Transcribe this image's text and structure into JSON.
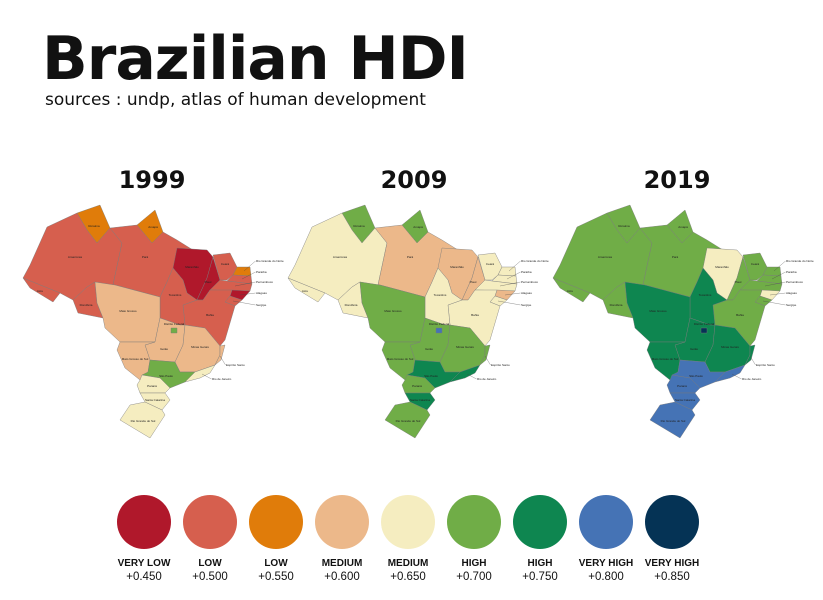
{
  "header": {
    "title": "Brazilian HDI",
    "subtitle": "sources : undp, atlas of human development"
  },
  "legend": [
    {
      "label": "VERY LOW",
      "value": "+0.450",
      "v": 0.45,
      "color": "#B0182B"
    },
    {
      "label": "LOW",
      "value": "+0.500",
      "v": 0.5,
      "color": "#D65F4E"
    },
    {
      "label": "LOW",
      "value": "+0.550",
      "v": 0.55,
      "color": "#E07C0A"
    },
    {
      "label": "MEDIUM",
      "value": "+0.600",
      "v": 0.6,
      "color": "#ECB88A"
    },
    {
      "label": "MEDIUM",
      "value": "+0.650",
      "v": 0.65,
      "color": "#F5EDC0"
    },
    {
      "label": "HIGH",
      "value": "+0.700",
      "v": 0.7,
      "color": "#70AD47"
    },
    {
      "label": "HIGH",
      "value": "+0.750",
      "v": 0.75,
      "color": "#0E8650"
    },
    {
      "label": "VERY HIGH",
      "value": "+0.800",
      "v": 0.8,
      "color": "#4573B5"
    },
    {
      "label": "VERY HIGH",
      "value": "+0.850",
      "v": 0.85,
      "color": "#053355"
    }
  ],
  "states": {
    "RR": "Roraima",
    "AP": "Amapá",
    "AM": "Amazonas",
    "AC": "Acre",
    "RO": "Rondônia",
    "PA": "Pará",
    "MA": "Maranhão",
    "PI": "Piauí",
    "CE": "Ceará",
    "RN": "Rio Grande do Norte",
    "PB": "Paraíba",
    "PE": "Pernambuco",
    "AL": "Alagoas",
    "SE": "Sergipe",
    "BA": "Bahia",
    "TO": "Tocantins",
    "MT": "Mato Grosso",
    "GO": "Goiás",
    "DF": "Distrito Federal",
    "MG": "Minas Gerais",
    "ES": "Espírito Santo",
    "MS": "Mato Grosso do Sul",
    "SP": "São Paulo",
    "RJ": "Rio de Janeiro",
    "PR": "Paraná",
    "SC": "Santa Catarina",
    "RS": "Rio Grande do Sul"
  },
  "maps": [
    {
      "year": "1999",
      "hdi": {
        "RR": 0.55,
        "AP": 0.55,
        "AM": 0.5,
        "AC": 0.5,
        "RO": 0.5,
        "PA": 0.5,
        "MA": 0.45,
        "PI": 0.45,
        "CE": 0.5,
        "RN": 0.55,
        "PB": 0.5,
        "PE": 0.5,
        "AL": 0.45,
        "SE": 0.5,
        "BA": 0.5,
        "TO": 0.5,
        "MT": 0.6,
        "GO": 0.6,
        "DF": 0.7,
        "MG": 0.6,
        "ES": 0.6,
        "MS": 0.6,
        "SP": 0.7,
        "RJ": 0.65,
        "PR": 0.65,
        "SC": 0.65,
        "RS": 0.65
      }
    },
    {
      "year": "2009",
      "hdi": {
        "RR": 0.7,
        "AP": 0.7,
        "AM": 0.65,
        "AC": 0.65,
        "RO": 0.65,
        "PA": 0.6,
        "MA": 0.6,
        "PI": 0.6,
        "CE": 0.65,
        "RN": 0.65,
        "PB": 0.65,
        "PE": 0.65,
        "AL": 0.6,
        "SE": 0.65,
        "BA": 0.65,
        "TO": 0.65,
        "MT": 0.7,
        "GO": 0.7,
        "DF": 0.8,
        "MG": 0.7,
        "ES": 0.7,
        "MS": 0.7,
        "SP": 0.75,
        "RJ": 0.75,
        "PR": 0.7,
        "SC": 0.75,
        "RS": 0.7
      }
    },
    {
      "year": "2019",
      "hdi": {
        "RR": 0.7,
        "AP": 0.7,
        "AM": 0.7,
        "AC": 0.7,
        "RO": 0.7,
        "PA": 0.7,
        "MA": 0.65,
        "PI": 0.7,
        "CE": 0.7,
        "RN": 0.7,
        "PB": 0.7,
        "PE": 0.7,
        "AL": 0.65,
        "SE": 0.7,
        "BA": 0.7,
        "TO": 0.75,
        "MT": 0.75,
        "GO": 0.75,
        "DF": 0.85,
        "MG": 0.75,
        "ES": 0.75,
        "MS": 0.75,
        "SP": 0.8,
        "RJ": 0.8,
        "PR": 0.8,
        "SC": 0.8,
        "RS": 0.8
      }
    }
  ]
}
